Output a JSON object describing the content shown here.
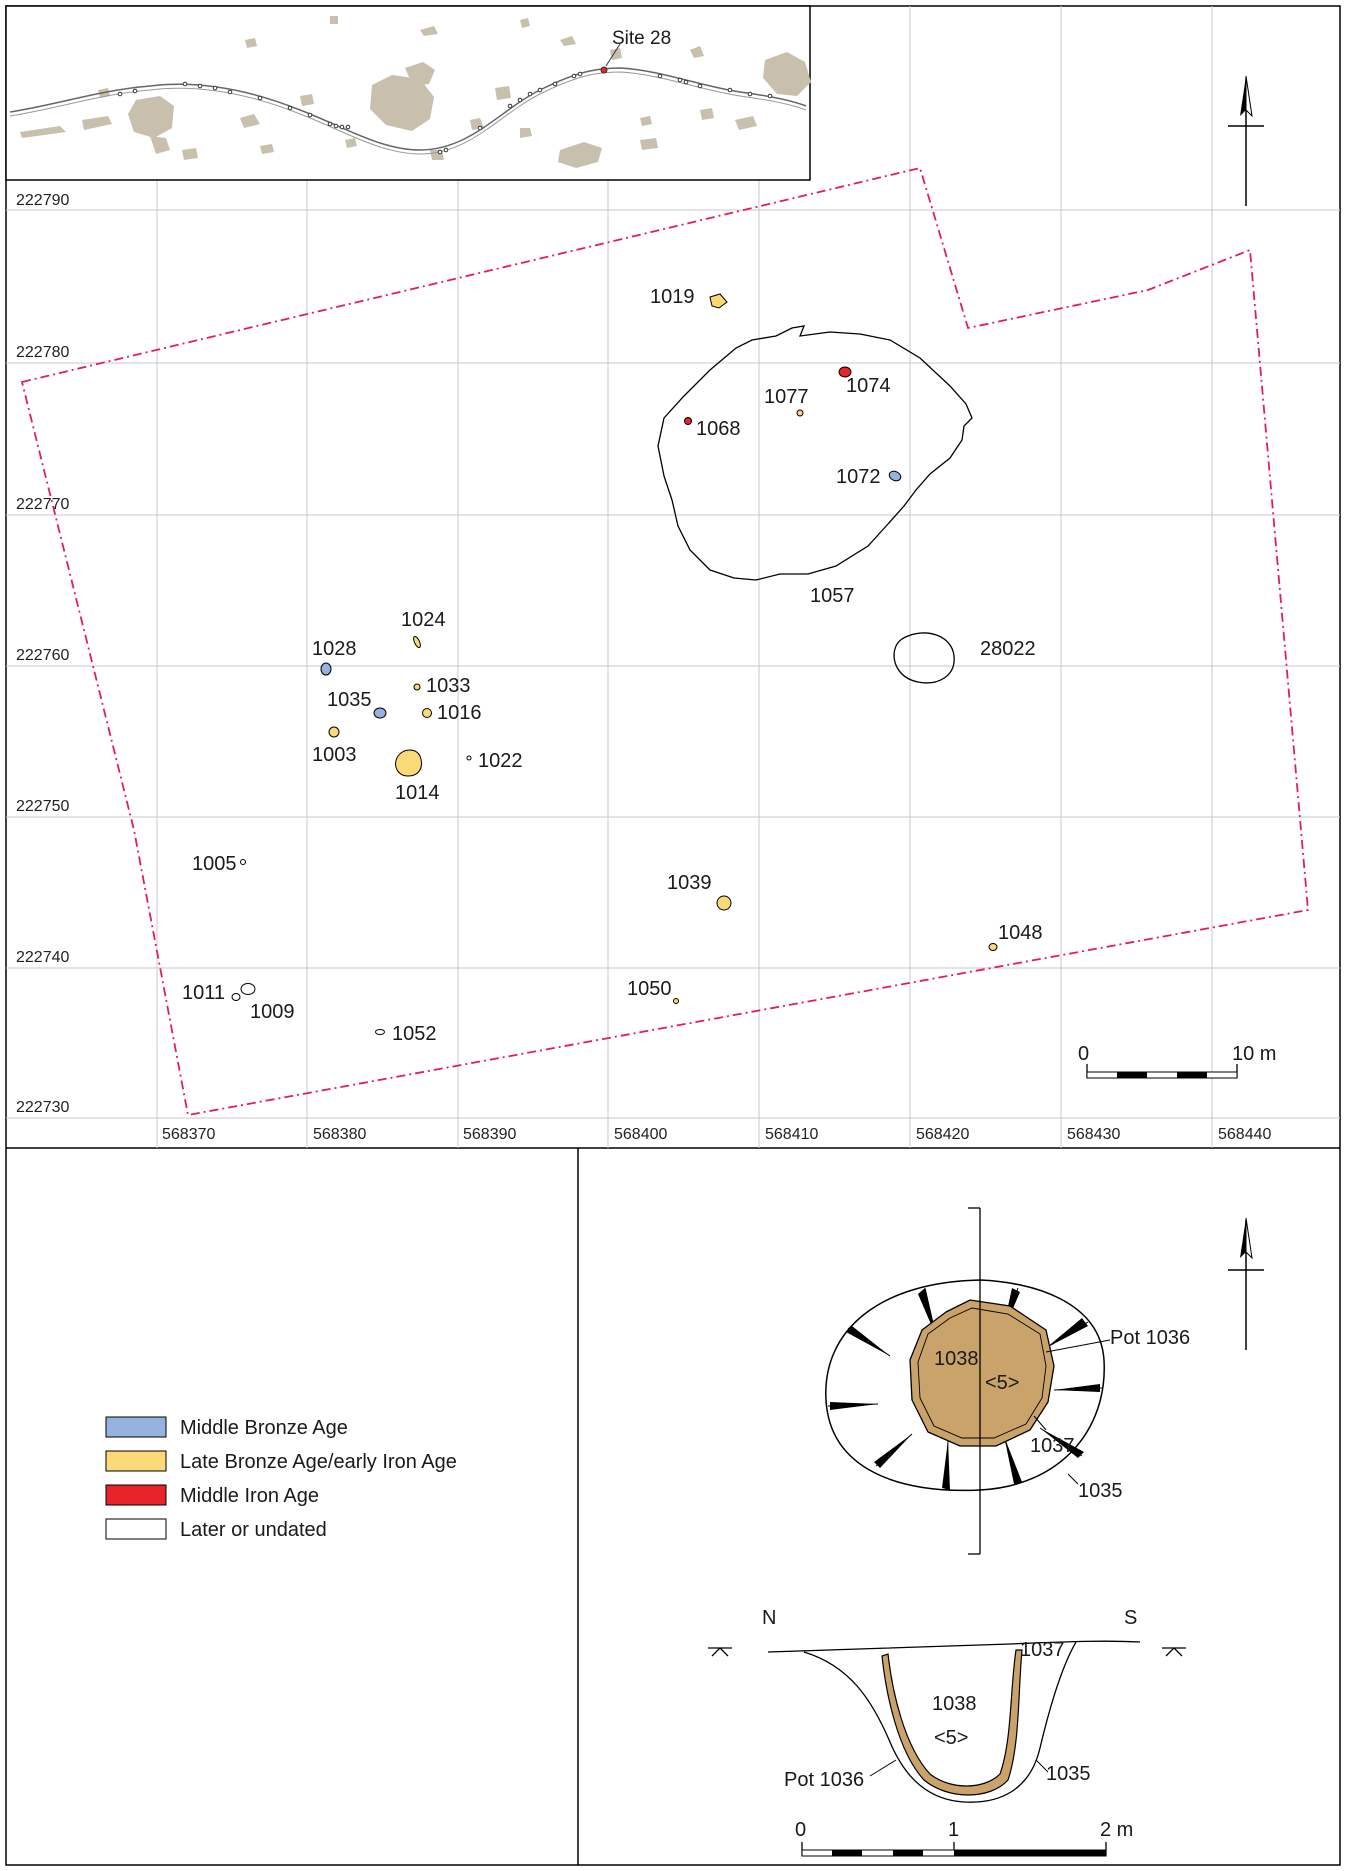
{
  "inset": {
    "site_label": "Site 28"
  },
  "grid": {
    "northings": [
      "222790",
      "222780",
      "222770",
      "222760",
      "222750",
      "222740",
      "222730"
    ],
    "eastings": [
      "568370",
      "568380",
      "568390",
      "568400",
      "568410",
      "568420",
      "568430",
      "568440"
    ]
  },
  "features": [
    {
      "id": "1019",
      "period": "late_bronze_iron"
    },
    {
      "id": "1074",
      "period": "middle_iron"
    },
    {
      "id": "1077",
      "period": "late_bronze_iron"
    },
    {
      "id": "1068",
      "period": "middle_iron"
    },
    {
      "id": "1072",
      "period": "middle_bronze"
    },
    {
      "id": "1057",
      "period": "undated"
    },
    {
      "id": "1024",
      "period": "late_bronze_iron"
    },
    {
      "id": "1028",
      "period": "middle_bronze"
    },
    {
      "id": "28022",
      "period": "undated"
    },
    {
      "id": "1033",
      "period": "late_bronze_iron"
    },
    {
      "id": "1035",
      "period": "middle_bronze"
    },
    {
      "id": "1016",
      "period": "late_bronze_iron"
    },
    {
      "id": "1003",
      "period": "late_bronze_iron"
    },
    {
      "id": "1014",
      "period": "late_bronze_iron"
    },
    {
      "id": "1022",
      "period": "undated"
    },
    {
      "id": "1005",
      "period": "undated"
    },
    {
      "id": "1039",
      "period": "late_bronze_iron"
    },
    {
      "id": "1048",
      "period": "late_bronze_iron"
    },
    {
      "id": "1050",
      "period": "late_bronze_iron"
    },
    {
      "id": "1011",
      "period": "undated"
    },
    {
      "id": "1009",
      "period": "undated"
    },
    {
      "id": "1052",
      "period": "undated"
    }
  ],
  "scale_main": {
    "zero": "0",
    "end": "10 m"
  },
  "legend": [
    {
      "label": "Middle Bronze Age",
      "color": "#95b3dc"
    },
    {
      "label": "Late Bronze Age/early Iron Age",
      "color": "#fbd977"
    },
    {
      "label": "Middle Iron Age",
      "color": "#e8232a"
    },
    {
      "label": "Later or undated",
      "color": "#ffffff"
    }
  ],
  "plan": {
    "fill_1038": "1038",
    "sample": "<5>",
    "pot": "Pot 1036",
    "cut_1037": "1037",
    "cut_1035": "1035",
    "pot_color": "#c9a36a"
  },
  "section": {
    "north": "N",
    "south": "S",
    "fill_1038": "1038",
    "sample": "<5>",
    "cut_1037": "1037",
    "pot": "Pot 1036",
    "cut_1035": "1035"
  },
  "scale_plan": {
    "zero": "0",
    "mid": "1",
    "end": "2 m"
  }
}
